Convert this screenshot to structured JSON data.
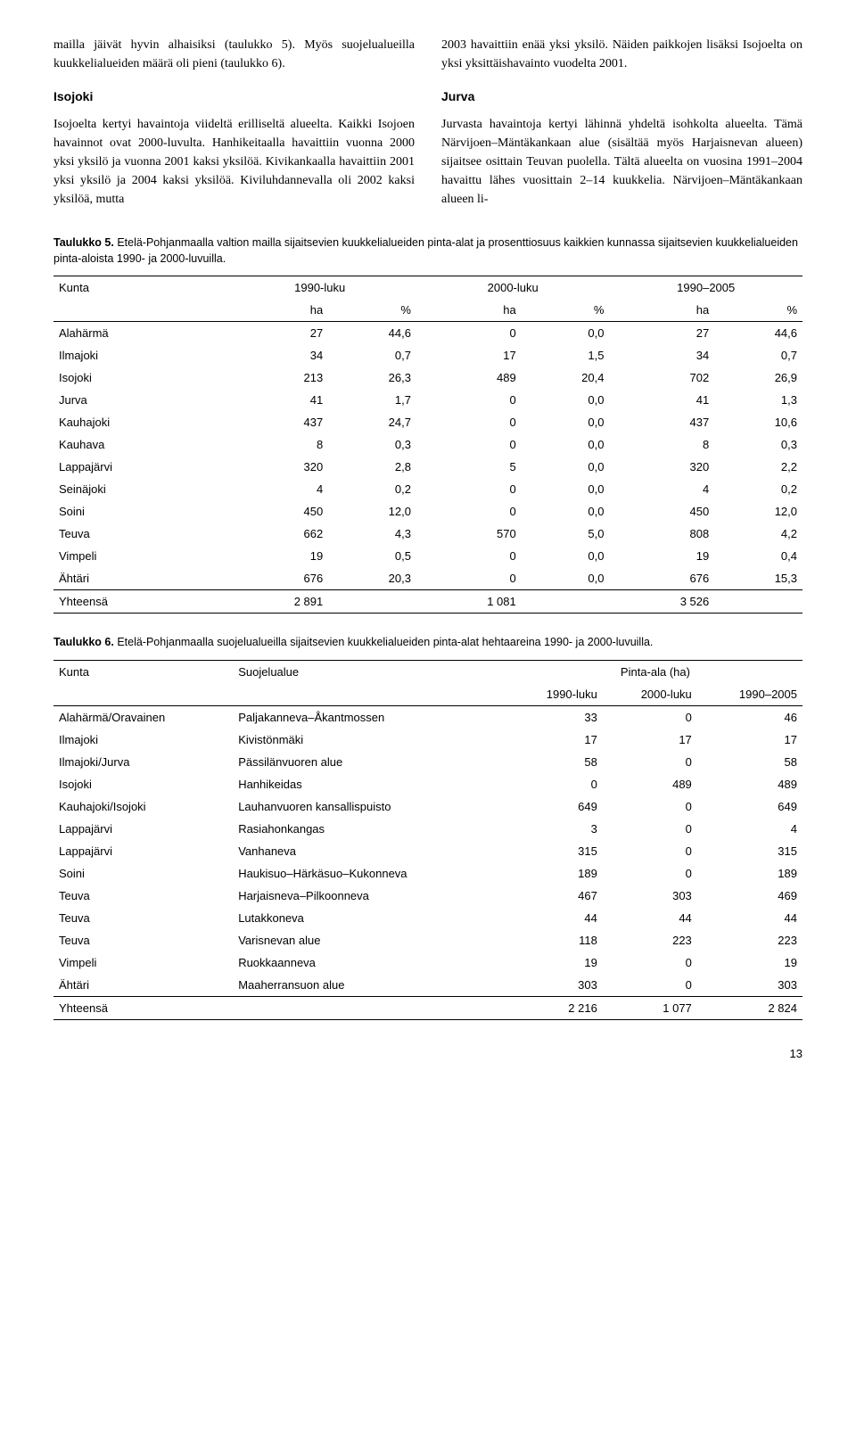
{
  "paragraphs": {
    "left1": "mailla jäivät hyvin alhaisiksi (taulukko 5). Myös suojelualueilla kuukkelialueiden määrä oli pieni (taulukko 6).",
    "left_heading": "Isojoki",
    "left2": "Isojoelta kertyi havaintoja viideltä erilliseltä alueelta. Kaikki Isojoen havainnot ovat 2000-luvulta. Hanhikeitaalla havaittiin vuonna 2000 yksi yksilö ja vuonna 2001 kaksi yksilöä. Kivikankaalla havaittiin 2001 yksi yksilö ja 2004 kaksi yksilöä. Kiviluhdannevalla oli 2002 kaksi yksilöä, mutta",
    "right1": "2003 havaittiin enää yksi yksilö. Näiden paikkojen lisäksi Isojoelta on yksi yksittäishavainto vuodelta 2001.",
    "right_heading": "Jurva",
    "right2": "Jurvasta havaintoja kertyi lähinnä yhdeltä isohkolta alueelta. Tämä Närvijoen–Mäntäkankaan alue (sisältää myös Harjaisnevan alueen) sijaitsee osittain Teuvan puolella. Tältä alueelta on vuosina 1991–2004 havaittu lähes vuosittain 2–14 kuukkelia. Närvijoen–Mäntäkankaan alueen li-"
  },
  "table5": {
    "caption_bold": "Taulukko 5.",
    "caption_rest": " Etelä-Pohjanmaalla valtion mailla sijaitsevien kuukkelialueiden pinta-alat ja prosenttiosuus kaikkien kunnassa sijaitsevien kuukkelialueiden pinta-aloista 1990- ja 2000-luvuilla.",
    "head_c0": "Kunta",
    "head_c1": "1990-luku",
    "head_c2": "2000-luku",
    "head_c3": "1990–2005",
    "sub_ha": "ha",
    "sub_pct": "%",
    "rows": [
      {
        "k": "Alahärmä",
        "a": "27",
        "b": "44,6",
        "c": "0",
        "d": "0,0",
        "e": "27",
        "f": "44,6"
      },
      {
        "k": "Ilmajoki",
        "a": "34",
        "b": "0,7",
        "c": "17",
        "d": "1,5",
        "e": "34",
        "f": "0,7"
      },
      {
        "k": "Isojoki",
        "a": "213",
        "b": "26,3",
        "c": "489",
        "d": "20,4",
        "e": "702",
        "f": "26,9"
      },
      {
        "k": "Jurva",
        "a": "41",
        "b": "1,7",
        "c": "0",
        "d": "0,0",
        "e": "41",
        "f": "1,3"
      },
      {
        "k": "Kauhajoki",
        "a": "437",
        "b": "24,7",
        "c": "0",
        "d": "0,0",
        "e": "437",
        "f": "10,6"
      },
      {
        "k": "Kauhava",
        "a": "8",
        "b": "0,3",
        "c": "0",
        "d": "0,0",
        "e": "8",
        "f": "0,3"
      },
      {
        "k": "Lappajärvi",
        "a": "320",
        "b": "2,8",
        "c": "5",
        "d": "0,0",
        "e": "320",
        "f": "2,2"
      },
      {
        "k": "Seinäjoki",
        "a": "4",
        "b": "0,2",
        "c": "0",
        "d": "0,0",
        "e": "4",
        "f": "0,2"
      },
      {
        "k": "Soini",
        "a": "450",
        "b": "12,0",
        "c": "0",
        "d": "0,0",
        "e": "450",
        "f": "12,0"
      },
      {
        "k": "Teuva",
        "a": "662",
        "b": "4,3",
        "c": "570",
        "d": "5,0",
        "e": "808",
        "f": "4,2"
      },
      {
        "k": "Vimpeli",
        "a": "19",
        "b": "0,5",
        "c": "0",
        "d": "0,0",
        "e": "19",
        "f": "0,4"
      },
      {
        "k": "Ähtäri",
        "a": "676",
        "b": "20,3",
        "c": "0",
        "d": "0,0",
        "e": "676",
        "f": "15,3"
      }
    ],
    "total": {
      "k": "Yhteensä",
      "a": "2 891",
      "c": "1 081",
      "e": "3 526"
    }
  },
  "table6": {
    "caption_bold": "Taulukko 6.",
    "caption_rest": " Etelä-Pohjanmaalla suojelualueilla sijaitsevien kuukkelialueiden pinta-alat hehtaareina 1990- ja 2000-luvuilla.",
    "head_c0": "Kunta",
    "head_c1": "Suojelualue",
    "head_c2": "Pinta-ala (ha)",
    "sub_a": "1990-luku",
    "sub_b": "2000-luku",
    "sub_c": "1990–2005",
    "rows": [
      {
        "k": "Alahärmä/Oravainen",
        "s": "Paljakanneva–Åkantmossen",
        "a": "33",
        "b": "0",
        "c": "46"
      },
      {
        "k": "Ilmajoki",
        "s": "Kivistönmäki",
        "a": "17",
        "b": "17",
        "c": "17"
      },
      {
        "k": "Ilmajoki/Jurva",
        "s": "Pässilänvuoren alue",
        "a": "58",
        "b": "0",
        "c": "58"
      },
      {
        "k": "Isojoki",
        "s": "Hanhikeidas",
        "a": "0",
        "b": "489",
        "c": "489"
      },
      {
        "k": "Kauhajoki/Isojoki",
        "s": "Lauhanvuoren kansallispuisto",
        "a": "649",
        "b": "0",
        "c": "649"
      },
      {
        "k": "Lappajärvi",
        "s": "Rasiahonkangas",
        "a": "3",
        "b": "0",
        "c": "4"
      },
      {
        "k": "Lappajärvi",
        "s": "Vanhaneva",
        "a": "315",
        "b": "0",
        "c": "315"
      },
      {
        "k": "Soini",
        "s": "Haukisuo–Härkäsuo–Kukonneva",
        "a": "189",
        "b": "0",
        "c": "189"
      },
      {
        "k": "Teuva",
        "s": "Harjaisneva–Pilkoonneva",
        "a": "467",
        "b": "303",
        "c": "469"
      },
      {
        "k": "Teuva",
        "s": "Lutakkoneva",
        "a": "44",
        "b": "44",
        "c": "44"
      },
      {
        "k": "Teuva",
        "s": "Varisnevan alue",
        "a": "118",
        "b": "223",
        "c": "223"
      },
      {
        "k": "Vimpeli",
        "s": "Ruokkaanneva",
        "a": "19",
        "b": "0",
        "c": "19"
      },
      {
        "k": "Ähtäri",
        "s": "Maaherransuon alue",
        "a": "303",
        "b": "0",
        "c": "303"
      }
    ],
    "total": {
      "k": "Yhteensä",
      "a": "2 216",
      "b": "1 077",
      "c": "2 824"
    }
  },
  "page_number": "13"
}
